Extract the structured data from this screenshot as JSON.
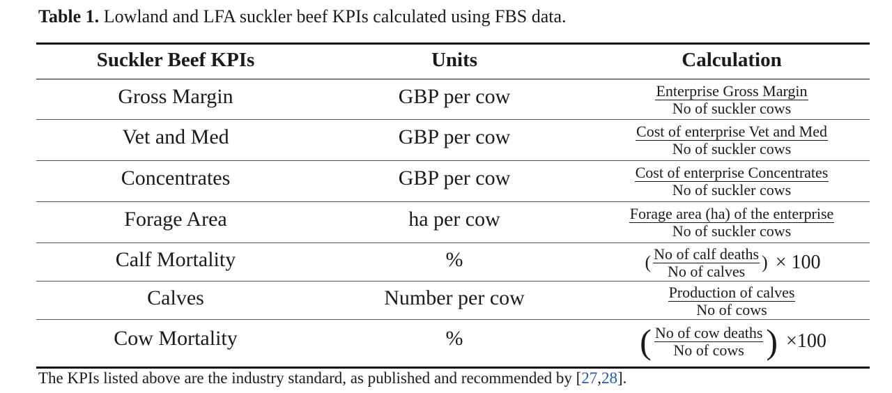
{
  "caption": {
    "label": "Table 1.",
    "text": "Lowland and LFA suckler beef KPIs calculated using FBS data."
  },
  "headers": {
    "kpi": "Suckler Beef KPIs",
    "units": "Units",
    "calculation": "Calculation"
  },
  "rows": [
    {
      "kpi": "Gross Margin",
      "units": "GBP per cow",
      "numerator": "Enterprise Gross Margin",
      "denominator": "No of suckler cows"
    },
    {
      "kpi": "Vet and Med",
      "units": "GBP per cow",
      "numerator": "Cost of enterprise Vet and Med",
      "denominator": "No of suckler cows"
    },
    {
      "kpi": "Concentrates",
      "units": "GBP per cow",
      "numerator": "Cost of enterprise Concentrates",
      "denominator": "No of suckler cows"
    },
    {
      "kpi": "Forage Area",
      "units": "ha per cow",
      "numerator": "Forage area (ha) of the enterprise",
      "denominator": "No of suckler cows"
    },
    {
      "kpi": "Calf Mortality",
      "units": "%",
      "numerator": "No of calf deaths",
      "denominator": "No of calves",
      "multiplier": "× 100"
    },
    {
      "kpi": "Calves",
      "units": "Number per cow",
      "numerator": "Production of calves",
      "denominator": "No of cows"
    },
    {
      "kpi": "Cow Mortality",
      "units": "%",
      "numerator": "No of cow deaths",
      "denominator": "No of cows",
      "multiplier": "×100"
    }
  ],
  "footnote": {
    "text_before": "The KPIs listed above are the industry standard, as published and recommended by [",
    "ref1": "27",
    "sep": ",",
    "ref2": "28",
    "text_after": "]."
  }
}
